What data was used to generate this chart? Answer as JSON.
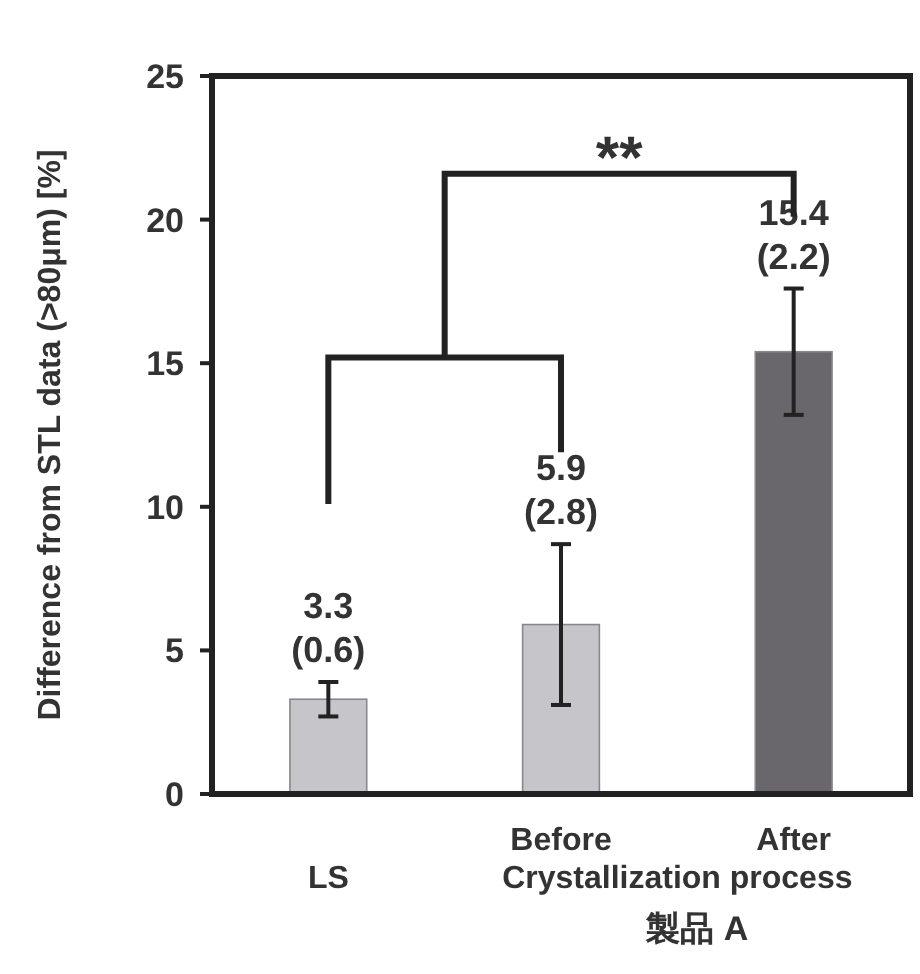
{
  "chart_data": {
    "type": "bar",
    "ylabel": "Difference from STL data (>80μm) [%]",
    "categories": [
      "LS",
      "Before",
      "After"
    ],
    "values": [
      3.3,
      5.9,
      15.4
    ],
    "errors": [
      0.6,
      2.8,
      2.2
    ],
    "colors": [
      "#c6c5c9",
      "#c6c5c9",
      "#6a676c"
    ],
    "value_labels": [
      "3.3\n(0.6)",
      "5.9\n(2.8)",
      "15.4\n(2.2)"
    ],
    "ylim": [
      0,
      25
    ],
    "yticks": [
      0,
      5,
      10,
      15,
      20,
      25
    ],
    "grid": false,
    "annotations": [
      "**",
      "Crystallization process",
      "製品 A"
    ]
  }
}
